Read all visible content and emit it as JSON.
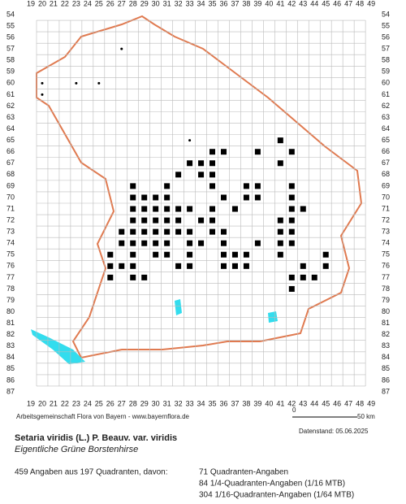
{
  "grid": {
    "columns": [
      19,
      20,
      21,
      22,
      23,
      24,
      25,
      26,
      27,
      28,
      29,
      30,
      31,
      32,
      33,
      34,
      35,
      36,
      37,
      38,
      39,
      40,
      41,
      42,
      43,
      44,
      45,
      46,
      47,
      48,
      49
    ],
    "rows": [
      54,
      55,
      56,
      57,
      58,
      59,
      60,
      61,
      62,
      63,
      64,
      65,
      66,
      67,
      68,
      69,
      70,
      71,
      72,
      73,
      74,
      75,
      76,
      77,
      78,
      79,
      80,
      81,
      82,
      83,
      84,
      85,
      86,
      87
    ]
  },
  "footer": {
    "credit": "Arbeitsgemeinschaft Flora von Bayern - www.bayernflora.de",
    "scale_start": "0",
    "scale_end": "50 km",
    "date": "Datenstand: 05.06.2025"
  },
  "species": {
    "name": "Setaria viridis (L.) P. Beauv. var. viridis",
    "common_name": "Eigentliche Grüne Borstenhirse"
  },
  "stats": {
    "summary": "459 Angaben aus 197 Quadranten, davon:",
    "lines": [
      "71 Quadranten-Angaben",
      "84 1/4-Quadranten-Angaben (1/16 MTB)",
      "304 1/16-Quadranten-Angaben (1/64 MTB)"
    ]
  }
}
